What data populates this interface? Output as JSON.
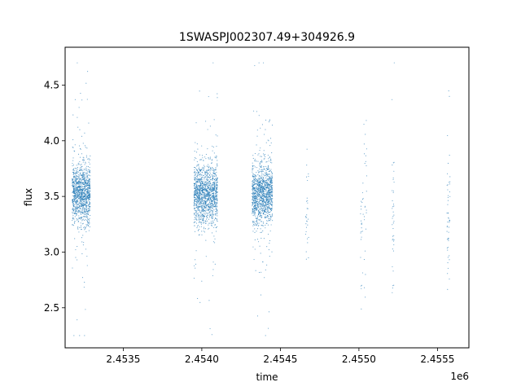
{
  "chart_data": {
    "type": "scatter",
    "title": "1SWASPJ002307.49+304926.9",
    "xlabel": "time",
    "ylabel": "flux",
    "x_offset_label": "1e6",
    "xlim": [
      2453130,
      2455700
    ],
    "ylim": [
      2.14,
      4.84
    ],
    "x_ticks": [
      2453500,
      2454000,
      2454500,
      2455000,
      2455500
    ],
    "x_tick_labels": [
      "2.4535",
      "2.4540",
      "2.4545",
      "2.4550",
      "2.4555"
    ],
    "y_ticks": [
      2.5,
      3.0,
      3.5,
      4.0,
      4.5
    ],
    "y_tick_labels": [
      "2.5",
      "3.0",
      "3.5",
      "4.0",
      "4.5"
    ],
    "grid": false,
    "legend": "none",
    "marker_color": "#1f77b4",
    "series": [
      {
        "clusters": [
          {
            "x_range": [
              2453175,
              2453290
            ],
            "y_center": 3.52,
            "y_spread": 0.13,
            "approx_points": 1200
          },
          {
            "x_range": [
              2453950,
              2454100
            ],
            "y_center": 3.52,
            "y_spread": 0.13,
            "approx_points": 1400
          },
          {
            "x_range": [
              2454320,
              2454450
            ],
            "y_center": 3.52,
            "y_spread": 0.13,
            "approx_points": 1300
          },
          {
            "x_range": [
              2454660,
              2454680
            ],
            "y_center": 3.35,
            "y_spread": 0.25,
            "approx_points": 30
          },
          {
            "x_range": [
              2455010,
              2455050
            ],
            "y_center": 3.3,
            "y_spread": 0.35,
            "approx_points": 50
          },
          {
            "x_range": [
              2455210,
              2455225
            ],
            "y_center": 3.3,
            "y_spread": 0.3,
            "approx_points": 40
          },
          {
            "x_range": [
              2455560,
              2455580
            ],
            "y_center": 3.35,
            "y_spread": 0.35,
            "approx_points": 50
          }
        ],
        "x_min": 2453160,
        "x_max": 2455580,
        "y_min": 2.25,
        "y_max": 4.7
      }
    ]
  }
}
